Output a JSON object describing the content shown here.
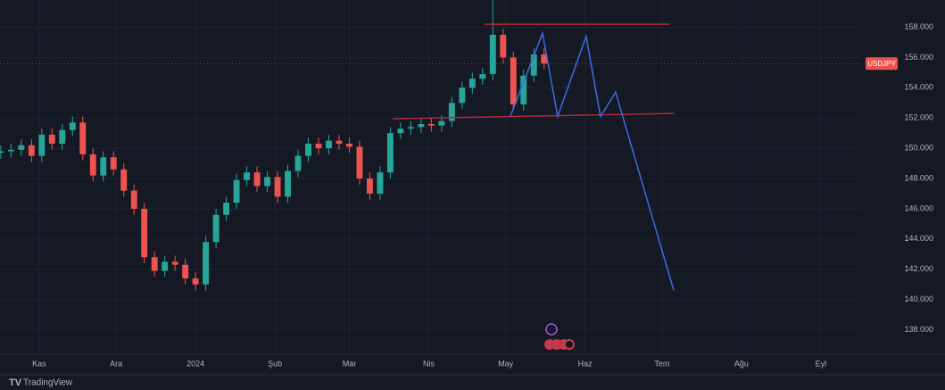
{
  "chart_data": {
    "type": "candlestick",
    "symbol": "USDJPY",
    "brand": "TradingView",
    "up_color": "#26a69a",
    "down_color": "#ef5350",
    "grid": true,
    "xlim": [
      -15.3,
      320.7
    ],
    "ylim": [
      136.5,
      159.8
    ],
    "xticks": [
      {
        "value": 0,
        "label": "Kas"
      },
      {
        "value": 30,
        "label": "Ara"
      },
      {
        "value": 61,
        "label": "2024"
      },
      {
        "value": 92,
        "label": "Şub"
      },
      {
        "value": 121,
        "label": "Mar"
      },
      {
        "value": 152,
        "label": "Nis"
      },
      {
        "value": 182,
        "label": "May"
      },
      {
        "value": 213,
        "label": "Haz"
      },
      {
        "value": 243,
        "label": "Tem"
      },
      {
        "value": 274,
        "label": "Ağu"
      },
      {
        "value": 305,
        "label": "Eyl"
      }
    ],
    "yticks": [
      {
        "value": 138,
        "label": "138.000"
      },
      {
        "value": 140,
        "label": "140.000"
      },
      {
        "value": 142,
        "label": "142.000"
      },
      {
        "value": 144,
        "label": "144.000"
      },
      {
        "value": 146,
        "label": "146.000"
      },
      {
        "value": 148,
        "label": "148.000"
      },
      {
        "value": 150,
        "label": "150.000"
      },
      {
        "value": 152,
        "label": "152.000"
      },
      {
        "value": 154,
        "label": "154.000"
      },
      {
        "value": 156,
        "label": "156.000"
      },
      {
        "value": 158,
        "label": "158.000"
      }
    ],
    "x": [
      -15,
      -11,
      -7,
      -3,
      1,
      5,
      9,
      13,
      17,
      21,
      25,
      29,
      33,
      37,
      41,
      45,
      49,
      53,
      57,
      61,
      65,
      69,
      73,
      77,
      81,
      85,
      89,
      93,
      97,
      101,
      105,
      109,
      113,
      117,
      121,
      125,
      129,
      133,
      137,
      141,
      145,
      149,
      153,
      157,
      161,
      165,
      169,
      173,
      177,
      181,
      185,
      189,
      193,
      197
    ],
    "open": [
      149.7,
      149.8,
      149.9,
      150.2,
      149.5,
      150.9,
      150.3,
      151.2,
      151.7,
      149.6,
      148.2,
      149.4,
      148.6,
      147.2,
      146.0,
      142.8,
      141.9,
      142.5,
      142.3,
      141.4,
      141.0,
      143.8,
      145.6,
      146.4,
      147.9,
      148.4,
      147.5,
      148.1,
      146.8,
      148.5,
      149.5,
      150.3,
      150.0,
      150.5,
      150.3,
      150.1,
      148.0,
      147.0,
      148.4,
      151.0,
      151.3,
      151.4,
      151.6,
      151.5,
      151.8,
      153.0,
      154.0,
      154.6,
      154.9,
      157.5,
      156.0,
      152.9,
      154.8,
      156.2
    ],
    "high": [
      150.2,
      150.3,
      150.6,
      150.6,
      151.3,
      151.3,
      151.6,
      152.1,
      152.1,
      150.0,
      149.8,
      149.8,
      149.0,
      147.6,
      146.4,
      143.2,
      142.9,
      142.9,
      142.7,
      141.8,
      144.2,
      146.0,
      146.8,
      148.3,
      148.8,
      148.8,
      148.5,
      148.5,
      148.9,
      149.9,
      150.7,
      150.7,
      150.9,
      150.9,
      150.7,
      150.5,
      148.4,
      148.8,
      151.4,
      151.7,
      151.8,
      152.0,
      152.0,
      152.2,
      153.4,
      154.4,
      155.0,
      155.3,
      159.8,
      157.9,
      156.4,
      155.2,
      156.6,
      156.6
    ],
    "low": [
      149.3,
      149.4,
      149.5,
      149.1,
      149.1,
      149.9,
      149.9,
      150.8,
      149.2,
      147.8,
      147.8,
      148.2,
      146.8,
      145.6,
      142.4,
      141.5,
      141.5,
      141.9,
      141.0,
      140.6,
      140.6,
      143.4,
      145.2,
      146.0,
      147.5,
      147.1,
      147.1,
      146.4,
      146.4,
      148.1,
      149.1,
      149.6,
      149.6,
      149.9,
      149.7,
      147.6,
      146.6,
      146.6,
      148.0,
      150.6,
      150.9,
      151.0,
      151.1,
      151.1,
      151.4,
      152.6,
      153.6,
      154.2,
      154.5,
      155.6,
      152.5,
      152.5,
      154.4,
      155.2
    ],
    "close": [
      149.8,
      149.9,
      150.2,
      149.5,
      150.9,
      150.3,
      151.2,
      151.7,
      149.6,
      148.2,
      149.4,
      148.6,
      147.2,
      146.0,
      142.8,
      141.9,
      142.5,
      142.3,
      141.4,
      141.0,
      143.8,
      145.6,
      146.4,
      147.9,
      148.4,
      147.5,
      148.1,
      146.8,
      148.5,
      149.5,
      150.3,
      150.0,
      150.5,
      150.3,
      150.1,
      148.0,
      147.0,
      148.4,
      151.0,
      151.3,
      151.4,
      151.6,
      151.5,
      151.8,
      153.0,
      154.0,
      154.6,
      154.9,
      157.5,
      156.0,
      152.9,
      154.8,
      156.2,
      155.6
    ],
    "drawings": [
      {
        "color": "#b2283a",
        "x": [
          173.7,
          245.8
        ],
        "y": [
          158.2,
          158.2
        ]
      },
      {
        "color": "#b2283a",
        "x": [
          137.9,
          247.6
        ],
        "y": [
          151.95,
          152.3
        ]
      },
      {
        "color": "#3d6be0",
        "x": [
          183.8,
          196.4,
          202.3,
          213.4,
          219.0,
          224.9,
          247.6
        ],
        "y": [
          152.1,
          157.6,
          152.1,
          157.4,
          152.1,
          153.7,
          140.6
        ]
      }
    ]
  }
}
